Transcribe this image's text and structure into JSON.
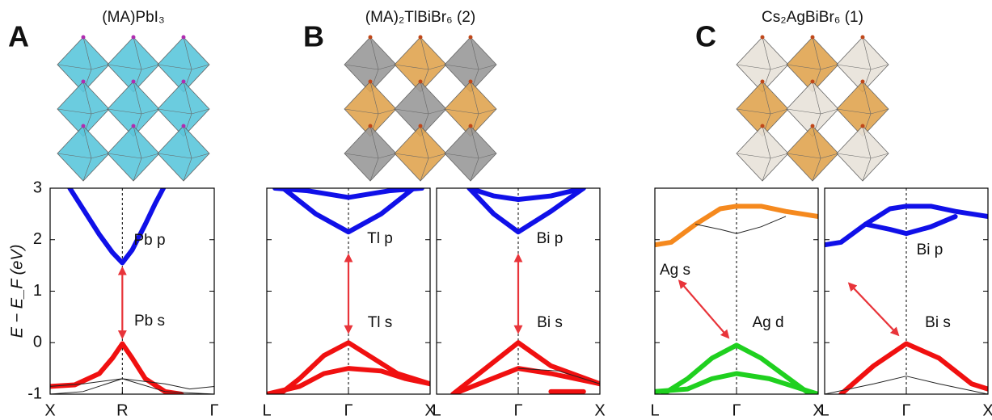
{
  "panels": [
    {
      "label": "A",
      "title": "(MA)PbI₃"
    },
    {
      "label": "B",
      "title": "(MA)₂TlBiBr₆ (2)"
    },
    {
      "label": "C",
      "title": "Cs₂AgBiBr₆ (1)"
    }
  ],
  "chart_data": [
    {
      "type": "band",
      "ylabel": "E − E_F (eV)",
      "xlim": [
        0,
        1
      ],
      "ylim": [
        -1,
        3
      ],
      "yticks": [
        -1,
        0,
        1,
        2,
        3
      ],
      "xticks": [
        {
          "value": 0,
          "label": "X"
        },
        {
          "value": 0.44,
          "label": "R"
        },
        {
          "value": 1,
          "label": "Γ"
        }
      ],
      "annotations": [
        "Pb p",
        "Pb s"
      ],
      "arrow": {
        "x": [
          0.44,
          0.44
        ],
        "y": [
          1.45,
          0.1
        ]
      },
      "bands": [
        {
          "color": "#1010e8",
          "x": [
            0.12,
            0.2,
            0.3,
            0.38,
            0.44,
            0.5,
            0.58,
            0.64,
            0.69
          ],
          "y": [
            3,
            2.6,
            2.1,
            1.75,
            1.55,
            1.8,
            2.3,
            2.7,
            3
          ]
        },
        {
          "color": "#f01010",
          "x": [
            0,
            0.15,
            0.3,
            0.38,
            0.44,
            0.5,
            0.58,
            0.7,
            0.8
          ],
          "y": [
            -0.85,
            -0.82,
            -0.6,
            -0.3,
            -0.02,
            -0.3,
            -0.7,
            -0.95,
            -1
          ]
        },
        {
          "color": "#222222",
          "x": [
            0,
            0.2,
            0.44,
            0.7,
            0.85,
            1
          ],
          "y": [
            -0.85,
            -0.8,
            -0.7,
            -0.8,
            -0.9,
            -0.85
          ]
        },
        {
          "color": "#222222",
          "x": [
            0,
            0.2,
            0.44,
            0.7,
            1
          ],
          "y": [
            -1,
            -0.95,
            -0.7,
            -0.95,
            -1
          ]
        }
      ]
    },
    {
      "type": "band",
      "xlim": [
        0,
        1
      ],
      "ylim": [
        -1,
        3
      ],
      "yticks": [
        -1,
        0,
        1,
        2,
        3
      ],
      "xticks": [
        {
          "value": 0,
          "label": "L"
        },
        {
          "value": 0.5,
          "label": "Γ"
        },
        {
          "value": 1,
          "label": "X"
        }
      ],
      "annotations": [
        "Tl p",
        "Tl s"
      ],
      "arrow": {
        "x": [
          0.5,
          0.5
        ],
        "y": [
          1.7,
          0.2
        ]
      },
      "bands": [
        {
          "color": "#1010e8",
          "x": [
            0.05,
            0.25,
            0.5,
            0.75,
            0.95
          ],
          "y": [
            3,
            2.95,
            2.82,
            2.95,
            3
          ]
        },
        {
          "color": "#1010e8",
          "x": [
            0.1,
            0.3,
            0.5,
            0.7,
            0.9
          ],
          "y": [
            3,
            2.5,
            2.15,
            2.5,
            3
          ]
        },
        {
          "color": "#f01010",
          "x": [
            0.08,
            0.2,
            0.35,
            0.5,
            0.65,
            0.8,
            1
          ],
          "y": [
            -1,
            -0.7,
            -0.25,
            0,
            -0.3,
            -0.6,
            -0.8
          ]
        },
        {
          "color": "#f01010",
          "x": [
            0,
            0.2,
            0.35,
            0.5,
            0.7,
            0.85,
            1
          ],
          "y": [
            -1,
            -0.85,
            -0.6,
            -0.5,
            -0.55,
            -0.7,
            -0.8
          ]
        }
      ]
    },
    {
      "type": "band",
      "xlim": [
        0,
        1
      ],
      "ylim": [
        -1,
        3
      ],
      "yticks": [
        -1,
        0,
        1,
        2,
        3
      ],
      "xticks": [
        {
          "value": 0,
          "label": "L"
        },
        {
          "value": 0.5,
          "label": "Γ"
        },
        {
          "value": 1,
          "label": "X"
        }
      ],
      "annotations": [
        "Bi p",
        "Bi s"
      ],
      "arrow": {
        "x": [
          0.5,
          0.5
        ],
        "y": [
          1.7,
          0.2
        ]
      },
      "bands": [
        {
          "color": "#1010e8",
          "x": [
            0.2,
            0.35,
            0.5,
            0.7,
            0.9
          ],
          "y": [
            3,
            2.85,
            2.78,
            2.85,
            3
          ]
        },
        {
          "color": "#1010e8",
          "x": [
            0.2,
            0.35,
            0.5,
            0.7,
            0.9
          ],
          "y": [
            3,
            2.5,
            2.15,
            2.55,
            3
          ]
        },
        {
          "color": "#f01010",
          "x": [
            0.1,
            0.3,
            0.5,
            0.7,
            1
          ],
          "y": [
            -1,
            -0.5,
            0,
            -0.45,
            -0.8
          ]
        },
        {
          "color": "#f01010",
          "x": [
            0.1,
            0.3,
            0.5,
            0.7,
            1
          ],
          "y": [
            -1,
            -0.75,
            -0.5,
            -0.6,
            -0.8
          ]
        },
        {
          "color": "#222222",
          "x": [
            0.5,
            0.75,
            1
          ],
          "y": [
            -0.5,
            -0.55,
            -0.8
          ]
        },
        {
          "color": "#f01010",
          "x": [
            0.7,
            0.9
          ],
          "y": [
            -0.95,
            -0.95
          ]
        }
      ]
    },
    {
      "type": "band",
      "xlim": [
        0,
        1
      ],
      "ylim": [
        -1,
        3
      ],
      "yticks": [
        -1,
        0,
        1,
        2,
        3
      ],
      "xticks": [
        {
          "value": 0,
          "label": "L"
        },
        {
          "value": 0.5,
          "label": "Γ"
        },
        {
          "value": 1,
          "label": "X"
        }
      ],
      "annotations": [
        "Ag s",
        "Ag d"
      ],
      "arrow": {
        "x": [
          0.15,
          0.45
        ],
        "y": [
          1.2,
          0.1
        ]
      },
      "bands": [
        {
          "color": "#f5891e",
          "x": [
            0,
            0.1,
            0.25,
            0.4,
            0.5,
            0.65,
            0.8,
            1
          ],
          "y": [
            1.9,
            1.95,
            2.3,
            2.6,
            2.65,
            2.65,
            2.55,
            2.45
          ]
        },
        {
          "color": "#222222",
          "x": [
            0.25,
            0.4,
            0.5,
            0.65,
            0.8
          ],
          "y": [
            2.3,
            2.2,
            2.12,
            2.25,
            2.45
          ]
        },
        {
          "color": "#1fd01f",
          "x": [
            0.05,
            0.2,
            0.35,
            0.5,
            0.65,
            0.8,
            0.95
          ],
          "y": [
            -1,
            -0.7,
            -0.3,
            -0.05,
            -0.3,
            -0.65,
            -1
          ]
        },
        {
          "color": "#1fd01f",
          "x": [
            0,
            0.2,
            0.35,
            0.5,
            0.7,
            0.85,
            1
          ],
          "y": [
            -0.95,
            -0.9,
            -0.7,
            -0.6,
            -0.7,
            -0.85,
            -1
          ]
        }
      ]
    },
    {
      "type": "band",
      "xlim": [
        0,
        1
      ],
      "ylim": [
        -1,
        3
      ],
      "yticks": [
        -1,
        0,
        1,
        2,
        3
      ],
      "xticks": [
        {
          "value": 0,
          "label": "L"
        },
        {
          "value": 0.5,
          "label": "Γ"
        },
        {
          "value": 1,
          "label": "X"
        }
      ],
      "annotations": [
        "Bi p",
        "Bi s"
      ],
      "arrow": {
        "x": [
          0.15,
          0.45
        ],
        "y": [
          1.15,
          0.15
        ]
      },
      "bands": [
        {
          "color": "#1010e8",
          "x": [
            0,
            0.1,
            0.25,
            0.4,
            0.5,
            0.65,
            0.8,
            1
          ],
          "y": [
            1.9,
            1.95,
            2.3,
            2.6,
            2.65,
            2.65,
            2.55,
            2.45
          ]
        },
        {
          "color": "#1010e8",
          "x": [
            0.25,
            0.4,
            0.5,
            0.65,
            0.8
          ],
          "y": [
            2.3,
            2.2,
            2.12,
            2.25,
            2.45
          ]
        },
        {
          "color": "#f01010",
          "x": [
            0.1,
            0.3,
            0.5,
            0.7,
            0.9,
            1
          ],
          "y": [
            -1,
            -0.45,
            -0.02,
            -0.3,
            -0.8,
            -0.9
          ]
        },
        {
          "color": "#222222",
          "x": [
            0,
            0.3,
            0.5,
            0.7,
            1
          ],
          "y": [
            -1,
            -0.8,
            -0.65,
            -0.8,
            -1
          ]
        }
      ]
    }
  ]
}
